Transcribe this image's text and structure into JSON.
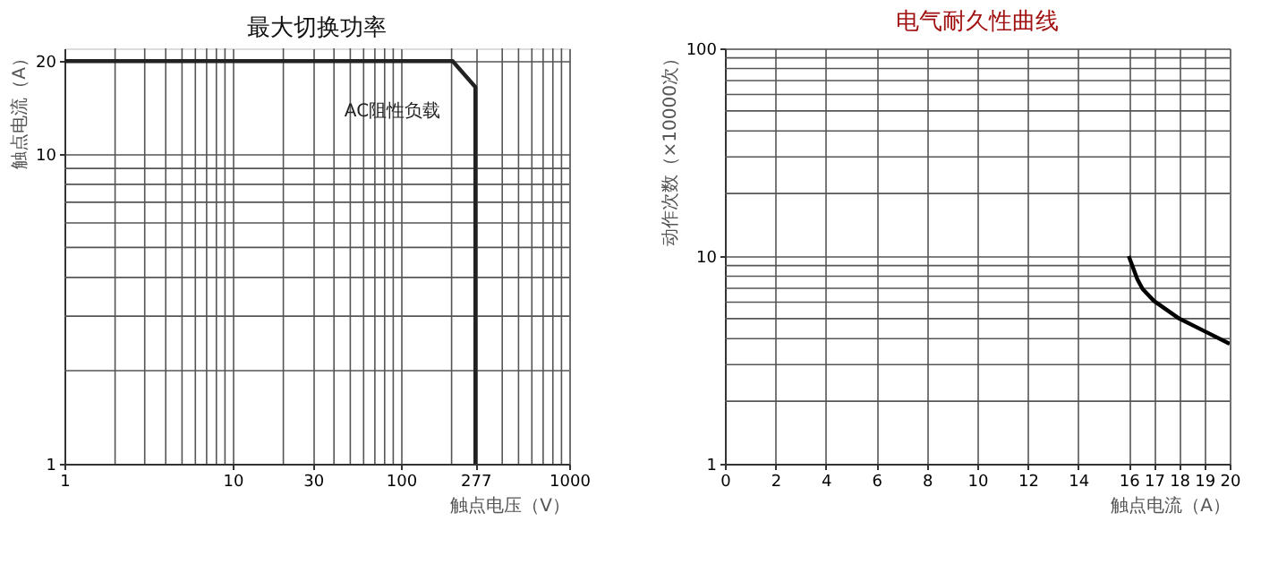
{
  "chart_data": [
    {
      "type": "line",
      "title": "最大切换功率",
      "xlabel": "触点电压（V）",
      "ylabel": "触点电流（A）",
      "log": "xy",
      "grid": true,
      "marker": "none",
      "line_style": "solid",
      "series": [
        {
          "color": "#222222",
          "x": [
            1,
            203,
            277,
            277
          ],
          "values": [
            20,
            20,
            16.5,
            1
          ]
        }
      ],
      "xlim": [
        1,
        1000
      ],
      "xticks": [
        1,
        {
          "value": 2,
          "label": null
        },
        {
          "value": 3,
          "label": null
        },
        {
          "value": 4,
          "label": null
        },
        {
          "value": 5,
          "label": null
        },
        {
          "value": 6,
          "label": null
        },
        {
          "value": 7,
          "label": null
        },
        {
          "value": 8,
          "label": null
        },
        {
          "value": 9,
          "label": null
        },
        10,
        {
          "value": 20,
          "label": null
        },
        30,
        {
          "value": 40,
          "label": null
        },
        {
          "value": 50,
          "label": null
        },
        {
          "value": 60,
          "label": null
        },
        {
          "value": 70,
          "label": null
        },
        {
          "value": 80,
          "label": null
        },
        {
          "value": 90,
          "label": null
        },
        100,
        {
          "value": 200,
          "label": null
        },
        277,
        {
          "value": 400,
          "label": null
        },
        {
          "value": 500,
          "label": null
        },
        {
          "value": 600,
          "label": null
        },
        {
          "value": 700,
          "label": null
        },
        {
          "value": 800,
          "label": null
        },
        {
          "value": 900,
          "label": null
        },
        1000
      ],
      "ylim": [
        1,
        22
      ],
      "yticks": [
        1,
        {
          "value": 2,
          "label": null
        },
        {
          "value": 3,
          "label": null
        },
        {
          "value": 4,
          "label": null
        },
        {
          "value": 5,
          "label": null
        },
        {
          "value": 6,
          "label": null
        },
        {
          "value": 7,
          "label": null
        },
        {
          "value": 8,
          "label": null
        },
        {
          "value": 9,
          "label": null
        },
        10,
        20
      ],
      "annotations": [
        "AC阻性负载"
      ]
    },
    {
      "type": "line",
      "title": "电气耐久性曲线",
      "xlabel": "触点电流（A）",
      "ylabel": "动作次数（×10000次）",
      "log": "y",
      "grid": true,
      "marker": "none",
      "line_style": "solid",
      "series": [
        {
          "color": "#000000",
          "x": [
            16,
            16.34,
            16.55,
            17,
            18,
            19,
            20
          ],
          "values": [
            10,
            7.74,
            6.94,
            6.08,
            5.0,
            4.35,
            3.78
          ]
        }
      ],
      "xlim": [
        0,
        20
      ],
      "xticks": [
        0,
        2,
        4,
        6,
        8,
        10,
        12,
        14,
        16,
        17,
        18,
        19,
        20
      ],
      "ylim": [
        1,
        100
      ],
      "yticks": [
        1,
        {
          "value": 2,
          "label": null
        },
        {
          "value": 3,
          "label": null
        },
        {
          "value": 4,
          "label": null
        },
        {
          "value": 5,
          "label": null
        },
        {
          "value": 6,
          "label": null
        },
        {
          "value": 7,
          "label": null
        },
        {
          "value": 8,
          "label": null
        },
        {
          "value": 9,
          "label": null
        },
        10,
        {
          "value": 20,
          "label": null
        },
        {
          "value": 30,
          "label": null
        },
        {
          "value": 40,
          "label": null
        },
        {
          "value": 50,
          "label": null
        },
        {
          "value": 60,
          "label": null
        },
        {
          "value": 70,
          "label": null
        },
        {
          "value": 80,
          "label": null
        },
        {
          "value": 90,
          "label": null
        },
        100
      ]
    }
  ]
}
